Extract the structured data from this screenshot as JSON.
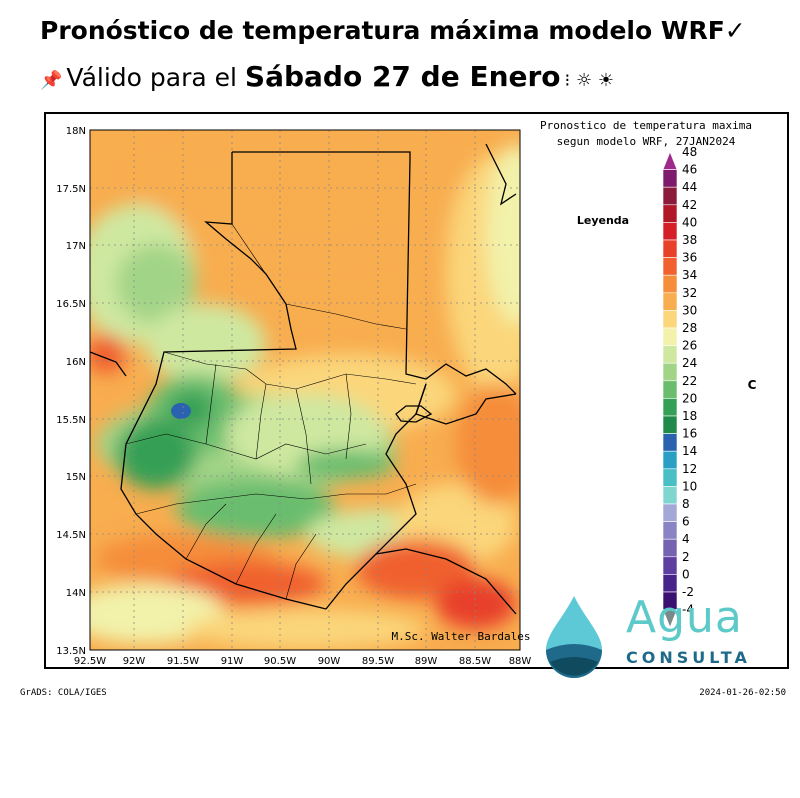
{
  "header": {
    "title": "Pronóstico de temperatura máxima modelo WRF✓",
    "subtitle_prefix": "Válido para el ",
    "subtitle_date": "Sábado 27 de Enero",
    "pin_icon": "pushpin-icon",
    "weather_icons": "⁝ ☼ ☀"
  },
  "map": {
    "plot_title_line1": "Pronostico de temperatura maxima",
    "plot_title_line2": "segun modelo WRF, 27JAN2024",
    "legend_label": "Leyenda",
    "unit": "C",
    "credit": "M.Sc. Walter Bardales",
    "lat_ticks": [
      "18N",
      "17.5N",
      "17N",
      "16.5N",
      "16N",
      "15.5N",
      "15N",
      "14.5N",
      "14N",
      "13.5N"
    ],
    "lon_ticks": [
      "92.5W",
      "92W",
      "91.5W",
      "91W",
      "90.5W",
      "90W",
      "89.5W",
      "89W",
      "88.5W",
      "88W"
    ],
    "colorbar": [
      {
        "label": "48",
        "color": "#9e2a8c"
      },
      {
        "label": "46",
        "color": "#7d1a6b"
      },
      {
        "label": "44",
        "color": "#8c1a3a"
      },
      {
        "label": "42",
        "color": "#b0182a"
      },
      {
        "label": "40",
        "color": "#d41f26"
      },
      {
        "label": "38",
        "color": "#e8412a"
      },
      {
        "label": "36",
        "color": "#f0612f"
      },
      {
        "label": "34",
        "color": "#f58d3b"
      },
      {
        "label": "32",
        "color": "#f8ad4f"
      },
      {
        "label": "30",
        "color": "#fbd67a"
      },
      {
        "label": "28",
        "color": "#f2f2aa"
      },
      {
        "label": "26",
        "color": "#cfe8a0"
      },
      {
        "label": "24",
        "color": "#a2d487"
      },
      {
        "label": "22",
        "color": "#6bbd6e"
      },
      {
        "label": "20",
        "color": "#35a055"
      },
      {
        "label": "18",
        "color": "#1f8a4a"
      },
      {
        "label": "16",
        "color": "#2a62b0"
      },
      {
        "label": "14",
        "color": "#2a9fc4"
      },
      {
        "label": "12",
        "color": "#48bfc4"
      },
      {
        "label": "10",
        "color": "#7fd6cf"
      },
      {
        "label": "8",
        "color": "#a3a8d6"
      },
      {
        "label": "6",
        "color": "#8a84c4"
      },
      {
        "label": "4",
        "color": "#7562b0"
      },
      {
        "label": "2",
        "color": "#5e3e9e"
      },
      {
        "label": "0",
        "color": "#48238a"
      },
      {
        "label": "-2",
        "color": "#3a1070"
      },
      {
        "label": "-4",
        "color": "#7a8a8a"
      }
    ]
  },
  "footer": {
    "left": "GrADS: COLA/IGES",
    "right": "2024-01-26-02:50"
  },
  "logo": {
    "word": "Agua",
    "sub": "CONSULTA"
  }
}
